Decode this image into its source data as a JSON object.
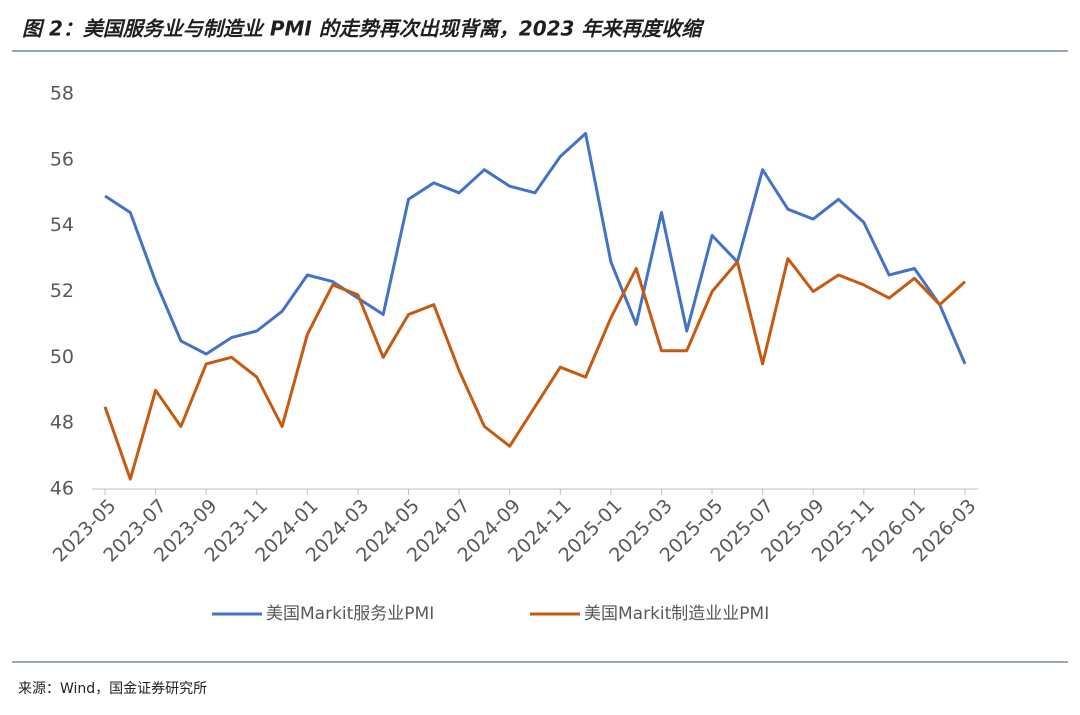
{
  "chart_data": {
    "type": "line",
    "title": "图 2：美国服务业与制造业 PMI 的走势再次出现背离，2023 年来再度收缩",
    "source": "来源：Wind，国金证券研究所",
    "categories": [
      "2023-05",
      null,
      "2023-07",
      null,
      "2023-09",
      null,
      "2023-11",
      null,
      "2024-01",
      null,
      "2024-03",
      null,
      "2024-05",
      null,
      "2024-07",
      null,
      "2024-09",
      null,
      "2024-11",
      null,
      "2025-01",
      null,
      "2025-03",
      null,
      "2025-05",
      null,
      "2025-07",
      null,
      "2025-09",
      null,
      "2025-11",
      null,
      "2026-01",
      null,
      "2026-03"
    ],
    "series": [
      {
        "name": "美国Markit服务业PMI",
        "color": "#4472c4",
        "values": [
          54.9,
          54.4,
          52.3,
          50.5,
          50.1,
          50.6,
          50.8,
          51.4,
          52.5,
          52.3,
          51.8,
          51.3,
          54.8,
          55.3,
          55.0,
          55.7,
          55.2,
          55.0,
          56.1,
          56.8,
          52.9,
          51.0,
          54.4,
          50.8,
          53.7,
          52.9,
          55.7,
          54.5,
          54.2,
          54.8,
          54.1,
          52.5,
          52.7,
          51.6,
          49.8
        ]
      },
      {
        "name": "美国Markit制造业业PMI",
        "color": "#c55a11",
        "values": [
          48.5,
          46.3,
          49.0,
          47.9,
          49.8,
          50.0,
          49.4,
          47.9,
          50.7,
          52.2,
          51.9,
          50.0,
          51.3,
          51.6,
          49.6,
          47.9,
          47.3,
          48.5,
          49.7,
          49.4,
          51.2,
          52.7,
          50.2,
          50.2,
          52.0,
          52.9,
          49.8,
          53.0,
          52.0,
          52.5,
          52.2,
          51.8,
          52.4,
          51.6,
          52.3
        ]
      }
    ],
    "ylim": [
      46,
      58
    ],
    "yticks": [
      46,
      48,
      50,
      52,
      54,
      56,
      58
    ],
    "grid": false,
    "legend": "bottom"
  }
}
